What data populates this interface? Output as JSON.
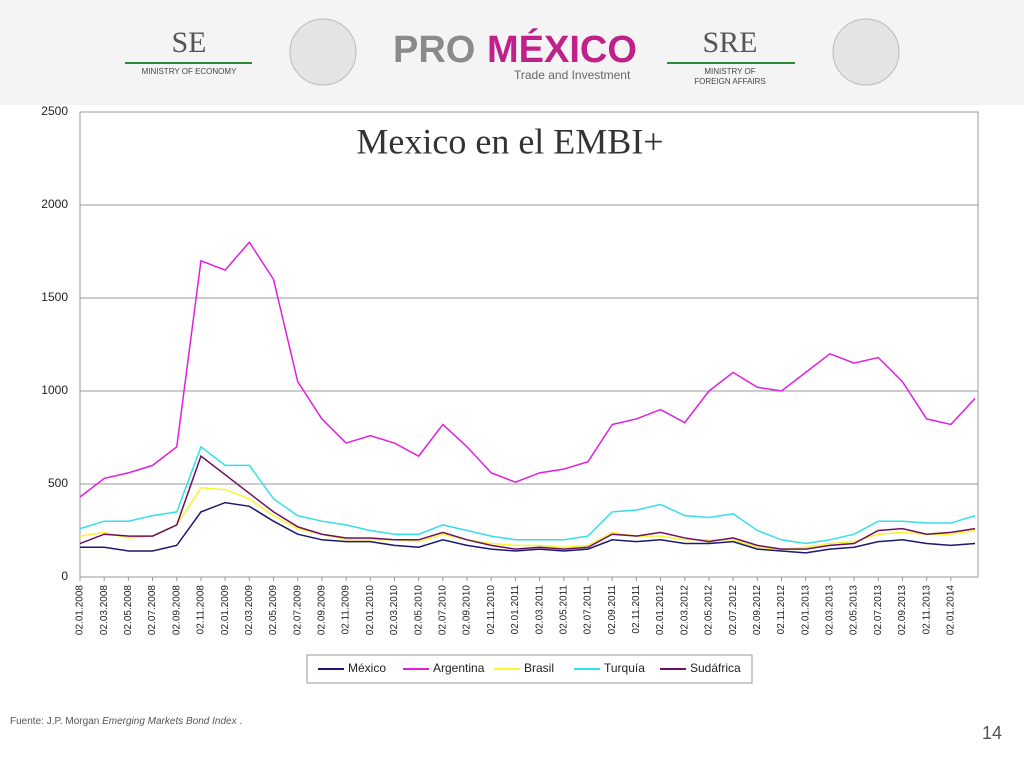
{
  "header": {
    "se": "SE",
    "se_sub": "MINISTRY OF ECONOMY",
    "pro": "PRO",
    "mexico": "MÉXICO",
    "tagline": "Trade and Investment",
    "sre": "SRE",
    "sre_sub1": "MINISTRY OF",
    "sre_sub2": "FOREIGN AFFAIRS"
  },
  "chart_data": {
    "type": "line",
    "title": "Mexico en el EMBI+",
    "categories": [
      "02.01.2008",
      "02.03.2008",
      "02.05.2008",
      "02.07.2008",
      "02.09.2008",
      "02.11.2008",
      "02.01.2009",
      "02.03.2009",
      "02.05.2009",
      "02.07.2009",
      "02.09.2009",
      "02.11.2009",
      "02.01.2010",
      "02.03.2010",
      "02.05.2010",
      "02.07.2010",
      "02.09.2010",
      "02.11.2010",
      "02.01.2011",
      "02.03.2011",
      "02.05.2011",
      "02.07.2011",
      "02.09.2011",
      "02.11.2011",
      "02.01.2012",
      "02.03.2012",
      "02.05.2012",
      "02.07.2012",
      "02.09.2012",
      "02.11.2012",
      "02.01.2013",
      "02.03.2013",
      "02.05.2013",
      "02.07.2013",
      "02.09.2013",
      "02.11.2013",
      "02.01.2014",
      null
    ],
    "series": [
      {
        "name": "México",
        "color": "#1a1a6e",
        "values": [
          160,
          160,
          140,
          140,
          170,
          350,
          400,
          380,
          300,
          230,
          200,
          190,
          190,
          170,
          160,
          200,
          170,
          150,
          140,
          150,
          140,
          150,
          200,
          190,
          200,
          180,
          180,
          190,
          150,
          140,
          130,
          150,
          160,
          190,
          200,
          180,
          170,
          180
        ]
      },
      {
        "name": "Argentina",
        "color": "#e020e0",
        "values": [
          430,
          530,
          560,
          600,
          700,
          1700,
          1650,
          1800,
          1600,
          1050,
          850,
          720,
          760,
          720,
          650,
          820,
          700,
          560,
          510,
          560,
          580,
          620,
          820,
          850,
          900,
          830,
          1000,
          1100,
          1020,
          1000,
          1100,
          1200,
          1150,
          1180,
          1050,
          850,
          820,
          960
        ]
      },
      {
        "name": "Brasil",
        "color": "#f5f530",
        "values": [
          220,
          240,
          210,
          220,
          280,
          480,
          470,
          420,
          330,
          260,
          230,
          200,
          200,
          200,
          190,
          230,
          200,
          180,
          170,
          170,
          160,
          170,
          240,
          220,
          220,
          200,
          200,
          200,
          160,
          150,
          160,
          180,
          190,
          230,
          240,
          230,
          230,
          250
        ]
      },
      {
        "name": "Turquía",
        "color": "#33e0e8",
        "values": [
          260,
          300,
          300,
          330,
          350,
          700,
          600,
          600,
          420,
          330,
          300,
          280,
          250,
          230,
          230,
          280,
          250,
          220,
          200,
          200,
          200,
          220,
          350,
          360,
          390,
          330,
          320,
          340,
          250,
          200,
          180,
          200,
          230,
          300,
          300,
          290,
          290,
          330
        ]
      },
      {
        "name": "Sudáfrica",
        "color": "#6b1060",
        "values": [
          180,
          230,
          220,
          220,
          280,
          650,
          550,
          450,
          350,
          270,
          230,
          210,
          210,
          200,
          200,
          240,
          200,
          170,
          150,
          160,
          150,
          160,
          230,
          220,
          240,
          210,
          190,
          210,
          170,
          150,
          150,
          170,
          180,
          250,
          260,
          230,
          240,
          260
        ]
      }
    ],
    "ylim": [
      0,
      2500
    ],
    "yticks": [
      0,
      500,
      1000,
      1500,
      2000,
      2500
    ],
    "grid": true,
    "legend": "bottom"
  },
  "footer": {
    "source": [
      "Fuente: J.P. Morgan",
      "Emerging Markets Bond Index",
      "."
    ],
    "page": "14"
  }
}
